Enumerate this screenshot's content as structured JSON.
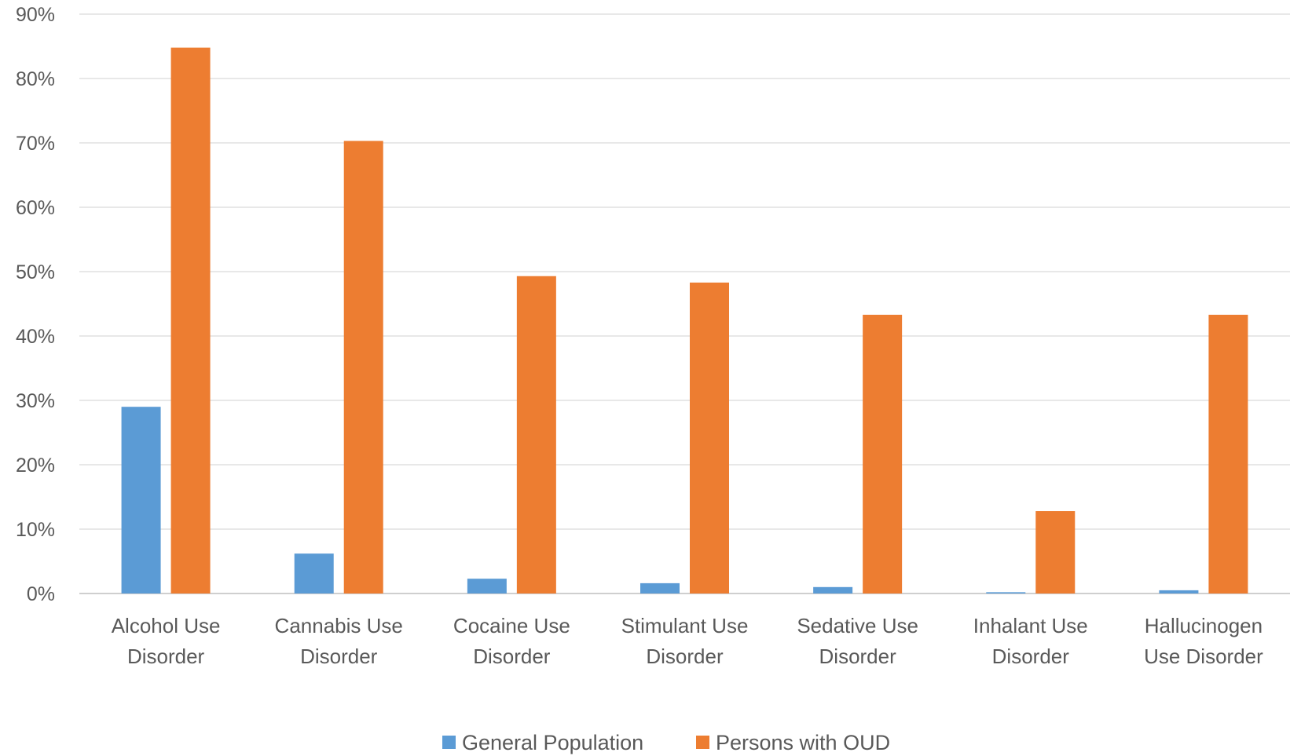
{
  "chart_data": {
    "type": "bar",
    "title": "",
    "xlabel": "",
    "ylabel": "",
    "categories": [
      [
        "Alcohol Use",
        "Disorder"
      ],
      [
        "Cannabis Use",
        "Disorder"
      ],
      [
        "Cocaine Use",
        "Disorder"
      ],
      [
        "Stimulant Use",
        "Disorder"
      ],
      [
        "Sedative Use",
        "Disorder"
      ],
      [
        "Inhalant Use",
        "Disorder"
      ],
      [
        "Hallucinogen",
        "Use Disorder"
      ]
    ],
    "series": [
      {
        "name": "General Population",
        "color": "#5B9BD5",
        "values": [
          29.0,
          6.2,
          2.3,
          1.6,
          1.0,
          0.2,
          0.5
        ]
      },
      {
        "name": "Persons with OUD",
        "color": "#ED7D31",
        "values": [
          84.8,
          70.3,
          49.3,
          48.3,
          43.3,
          12.8,
          43.3
        ]
      }
    ],
    "ylim": [
      0,
      90
    ],
    "yticks": [
      "0%",
      "10%",
      "20%",
      "30%",
      "40%",
      "50%",
      "60%",
      "70%",
      "80%",
      "90%"
    ],
    "grid": true,
    "legend_position": "bottom"
  }
}
